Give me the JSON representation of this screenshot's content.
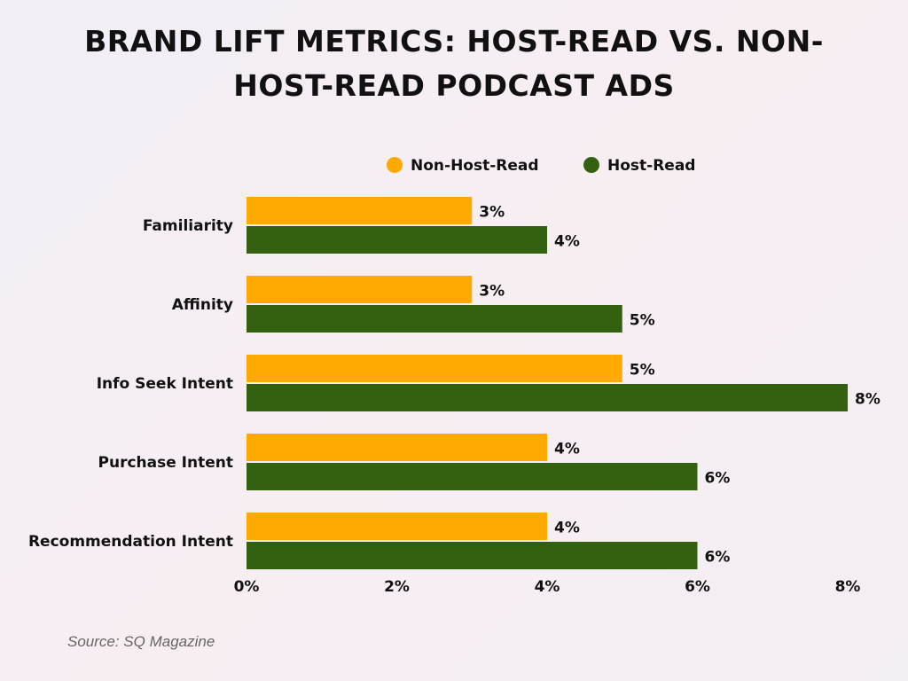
{
  "chart_data": {
    "type": "bar",
    "orientation": "horizontal",
    "title": "BRAND LIFT METRICS: HOST-READ VS. NON-HOST-READ PODCAST ADS",
    "title_lines": [
      "BRAND LIFT METRICS: HOST-READ VS. NON-",
      "HOST-READ PODCAST ADS"
    ],
    "categories": [
      "Familiarity",
      "Affinity",
      "Info Seek Intent",
      "Purchase Intent",
      "Recommendation Intent"
    ],
    "series": [
      {
        "name": "Non-Host-Read",
        "color": "#FFA903",
        "values": [
          3,
          3,
          5,
          4,
          4
        ],
        "labels": [
          "3%",
          "3%",
          "5%",
          "4%",
          "4%"
        ]
      },
      {
        "name": "Host-Read",
        "color": "#33610F",
        "values": [
          4,
          5,
          8,
          6,
          6
        ],
        "labels": [
          "4%",
          "5%",
          "8%",
          "6%",
          "6%"
        ]
      }
    ],
    "xlim": [
      0,
      8
    ],
    "xticks": [
      0,
      2,
      4,
      6,
      8
    ],
    "xtick_labels": [
      "0%",
      "2%",
      "4%",
      "6%",
      "8%"
    ],
    "xlabel": "",
    "ylabel": "",
    "grid": false,
    "legend_position": "top"
  },
  "source": "Source: SQ Magazine"
}
